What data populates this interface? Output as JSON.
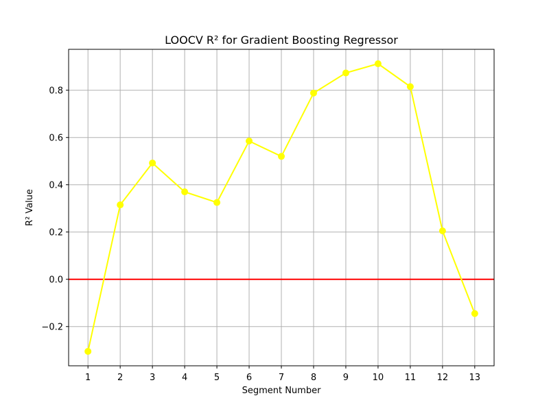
{
  "chart_data": {
    "type": "line",
    "title": "LOOCV R² for Gradient Boosting Regressor",
    "xlabel": "Segment Number",
    "ylabel": "R² Value",
    "x": [
      1,
      2,
      3,
      4,
      5,
      6,
      7,
      8,
      9,
      10,
      11,
      12,
      13
    ],
    "series": [
      {
        "values": [
          -0.305,
          0.315,
          0.492,
          0.37,
          0.325,
          0.585,
          0.52,
          0.788,
          0.873,
          0.912,
          0.815,
          0.205,
          -0.145
        ],
        "color": "#ffff00",
        "marker": "circle"
      }
    ],
    "reference_line": {
      "y": 0.0,
      "color": "#ff0000"
    },
    "xticks": [
      "1",
      "2",
      "3",
      "4",
      "5",
      "6",
      "7",
      "8",
      "9",
      "10",
      "11",
      "12",
      "13"
    ],
    "yticks": [
      -0.2,
      0.0,
      0.2,
      0.4,
      0.6,
      0.8
    ],
    "ytick_labels": [
      "−0.2",
      "0.0",
      "0.2",
      "0.4",
      "0.6",
      "0.8"
    ],
    "xlim": [
      0.4,
      13.6
    ],
    "ylim": [
      -0.366,
      0.973
    ],
    "grid": true
  }
}
